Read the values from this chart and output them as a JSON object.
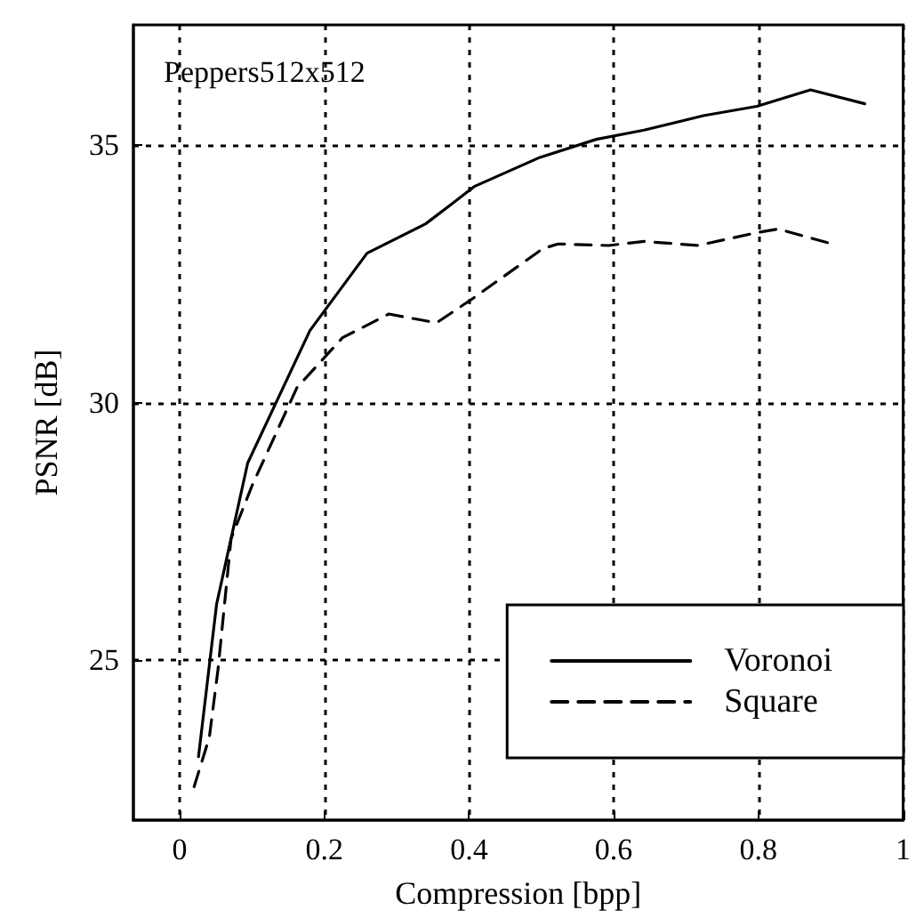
{
  "chart_data": {
    "type": "line",
    "xlabel": "Compression [bpp]",
    "ylabel": "PSNR [dB]",
    "annotations": [
      "Peppers512x512"
    ],
    "xlim": [
      -0.064,
      1.0
    ],
    "xticks": [
      0,
      0.2,
      0.4,
      0.6,
      0.8,
      1
    ],
    "ylim": [
      21.9,
      37.33
    ],
    "yticks": [
      25,
      30,
      35
    ],
    "grid": true,
    "legend": "bottom right",
    "marker": "none",
    "series": [
      {
        "name": "Voronoi",
        "color": "#000000",
        "line_style": "solid",
        "x": [
          0.026,
          0.051,
          0.094,
          0.18,
          0.259,
          0.34,
          0.408,
          0.498,
          0.576,
          0.642,
          0.724,
          0.798,
          0.872,
          0.947
        ],
        "values": [
          23.13,
          26.09,
          28.83,
          31.4,
          32.9,
          33.47,
          34.2,
          34.76,
          35.11,
          35.29,
          35.57,
          35.75,
          36.07,
          35.8
        ]
      },
      {
        "name": "Square",
        "color": "#000000",
        "line_style": "dashed",
        "x": [
          0.02,
          0.041,
          0.053,
          0.071,
          0.1,
          0.162,
          0.199,
          0.225,
          0.289,
          0.355,
          0.404,
          0.502,
          0.523,
          0.593,
          0.642,
          0.716,
          0.798,
          0.827,
          0.897
        ],
        "values": [
          22.55,
          23.51,
          24.83,
          27.36,
          28.39,
          30.29,
          30.86,
          31.26,
          31.72,
          31.55,
          32.01,
          32.99,
          33.08,
          33.05,
          33.13,
          33.05,
          33.3,
          33.37,
          33.1
        ]
      }
    ]
  }
}
